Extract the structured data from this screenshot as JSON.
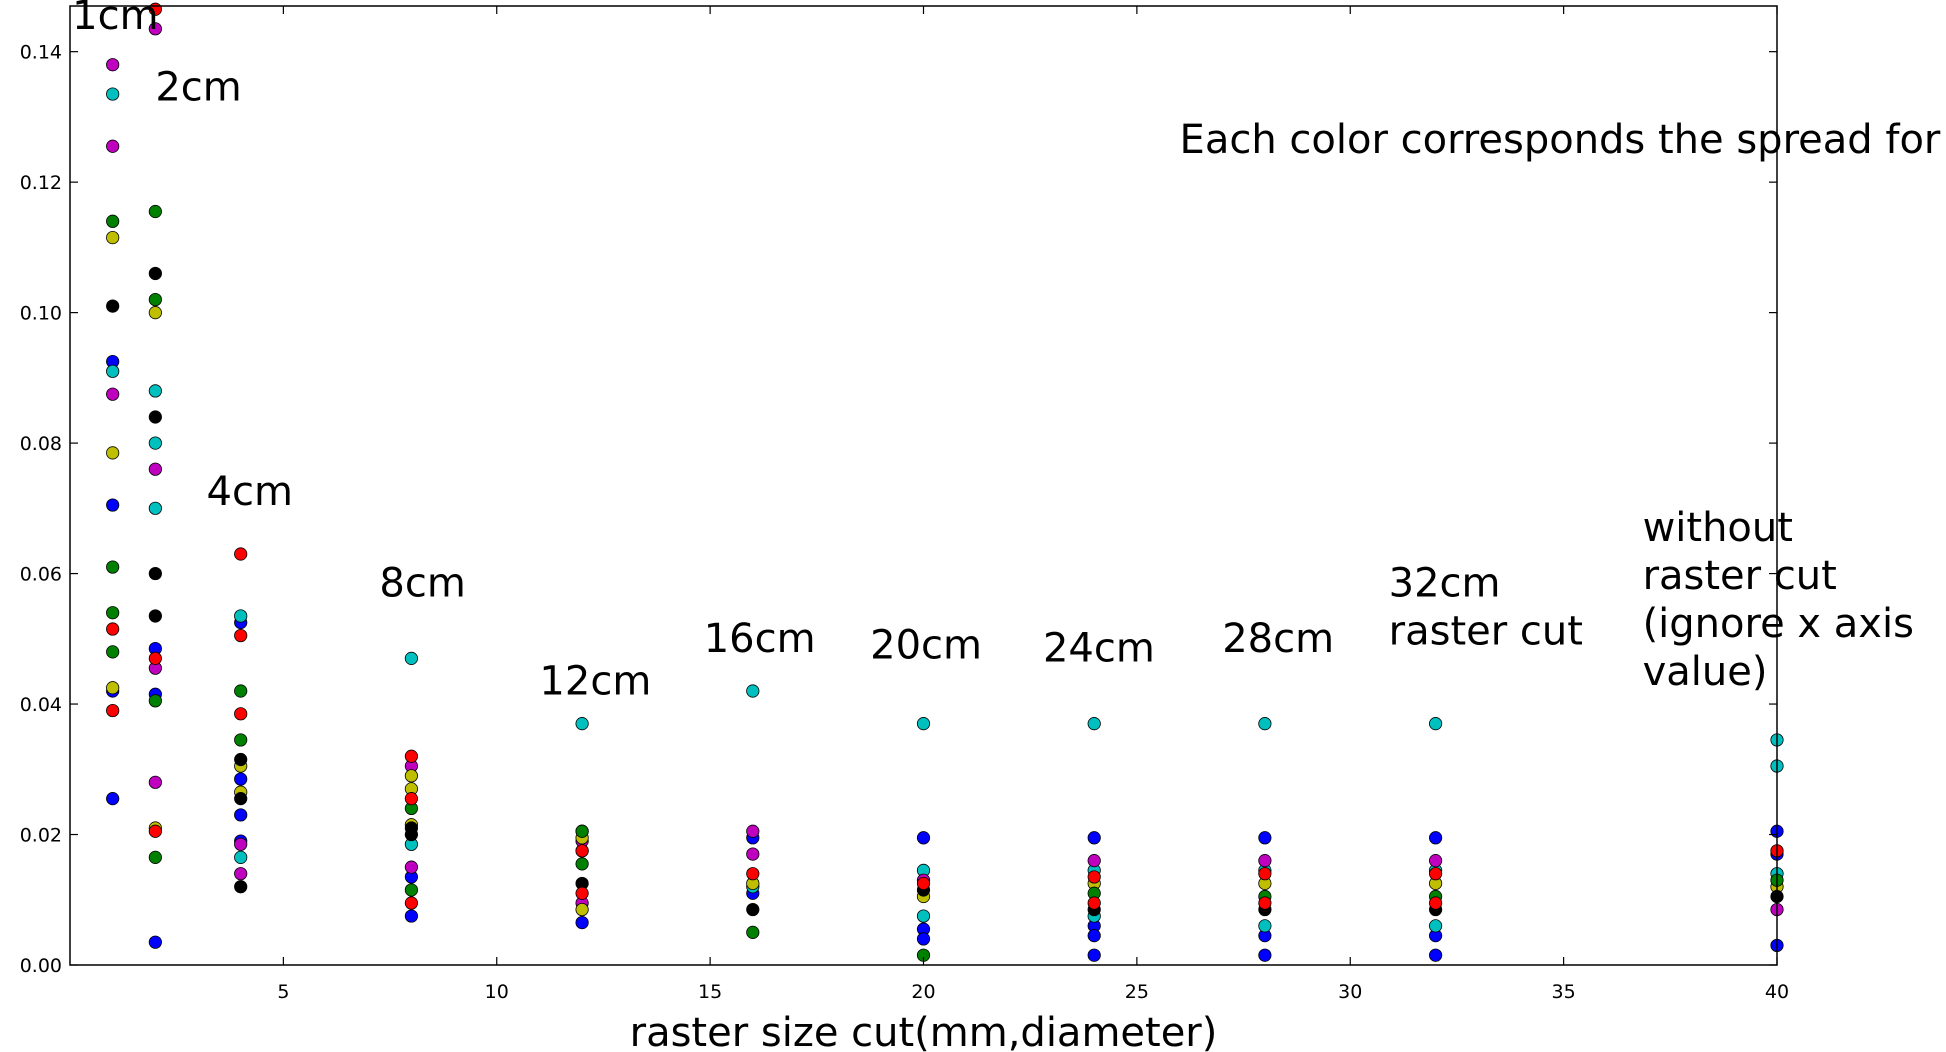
{
  "chart_data": {
    "type": "scatter",
    "title": "",
    "xlabel": "raster size cut(mm,diameter)",
    "ylabel": "",
    "xlim": [
      0,
      40
    ],
    "ylim": [
      0,
      0.147
    ],
    "xticks": [
      5,
      10,
      15,
      20,
      25,
      30,
      35,
      40
    ],
    "yticks": [
      0.0,
      0.02,
      0.04,
      0.06,
      0.08,
      0.1,
      0.12,
      0.14
    ],
    "xtick_labels": [
      "5",
      "10",
      "15",
      "20",
      "25",
      "30",
      "35",
      "40"
    ],
    "ytick_labels": [
      "0.00",
      "0.02",
      "0.04",
      "0.06",
      "0.08",
      "0.10",
      "0.12",
      "0.14"
    ],
    "grid": false,
    "annotations": [
      {
        "text": "Each color corresponds the spread for one setting",
        "x": 26.0,
        "y": 0.1245
      },
      {
        "text": "1cm",
        "x": 0.05,
        "y": 0.1435
      },
      {
        "text": "2cm",
        "x": 2.0,
        "y": 0.1325
      },
      {
        "text": "4cm",
        "x": 3.2,
        "y": 0.0705
      },
      {
        "text": "8cm",
        "x": 7.25,
        "y": 0.0565
      },
      {
        "text": "12cm",
        "x": 11.0,
        "y": 0.0415
      },
      {
        "text": "16cm",
        "x": 14.85,
        "y": 0.048
      },
      {
        "text": "20cm",
        "x": 18.75,
        "y": 0.047
      },
      {
        "text": "24cm",
        "x": 22.8,
        "y": 0.0465
      },
      {
        "text": "28cm",
        "x": 27.0,
        "y": 0.048
      },
      {
        "text": "32cm\nraster cut",
        "x": 30.9,
        "y": 0.0565
      },
      {
        "text": "without\nraster cut\n(ignore x axis\nvalue)",
        "x": 36.85,
        "y": 0.065
      }
    ],
    "series": [
      {
        "color": "#0000ff",
        "points": [
          [
            1,
            0.0925
          ],
          [
            1,
            0.0705
          ],
          [
            1,
            0.042
          ],
          [
            1,
            0.0255
          ],
          [
            2,
            0.0485
          ],
          [
            2,
            0.0415
          ],
          [
            2,
            0.0035
          ],
          [
            4,
            0.0525
          ],
          [
            4,
            0.0285
          ],
          [
            4,
            0.023
          ],
          [
            4,
            0.019
          ],
          [
            8,
            0.0135
          ],
          [
            8,
            0.0075
          ],
          [
            12,
            0.0205
          ],
          [
            12,
            0.0065
          ],
          [
            16,
            0.0195
          ],
          [
            16,
            0.011
          ],
          [
            20,
            0.0195
          ],
          [
            20,
            0.0055
          ],
          [
            20,
            0.004
          ],
          [
            24,
            0.0195
          ],
          [
            24,
            0.006
          ],
          [
            24,
            0.0045
          ],
          [
            24,
            0.0015
          ],
          [
            28,
            0.0195
          ],
          [
            28,
            0.0045
          ],
          [
            28,
            0.0015
          ],
          [
            32,
            0.0195
          ],
          [
            32,
            0.0045
          ],
          [
            32,
            0.0015
          ],
          [
            40,
            0.0205
          ],
          [
            40,
            0.017
          ],
          [
            40,
            0.003
          ]
        ]
      },
      {
        "color": "#00bfbf",
        "points": [
          [
            1,
            0.1335
          ],
          [
            1,
            0.091
          ],
          [
            2,
            0.088
          ],
          [
            2,
            0.08
          ],
          [
            2,
            0.07
          ],
          [
            4,
            0.0535
          ],
          [
            4,
            0.0165
          ],
          [
            8,
            0.047
          ],
          [
            8,
            0.0185
          ],
          [
            12,
            0.037
          ],
          [
            12,
            0.0175
          ],
          [
            16,
            0.042
          ],
          [
            16,
            0.012
          ],
          [
            20,
            0.037
          ],
          [
            20,
            0.0145
          ],
          [
            20,
            0.0075
          ],
          [
            24,
            0.037
          ],
          [
            24,
            0.0145
          ],
          [
            24,
            0.0075
          ],
          [
            28,
            0.037
          ],
          [
            28,
            0.0145
          ],
          [
            28,
            0.006
          ],
          [
            32,
            0.037
          ],
          [
            32,
            0.0145
          ],
          [
            32,
            0.006
          ],
          [
            40,
            0.0345
          ],
          [
            40,
            0.0305
          ],
          [
            40,
            0.014
          ]
        ]
      },
      {
        "color": "#bf00bf",
        "points": [
          [
            1,
            0.138
          ],
          [
            1,
            0.1255
          ],
          [
            1,
            0.0875
          ],
          [
            2,
            0.1435
          ],
          [
            2,
            0.076
          ],
          [
            2,
            0.0455
          ],
          [
            2,
            0.028
          ],
          [
            4,
            0.0185
          ],
          [
            4,
            0.014
          ],
          [
            8,
            0.0305
          ],
          [
            8,
            0.015
          ],
          [
            12,
            0.019
          ],
          [
            12,
            0.0095
          ],
          [
            16,
            0.0205
          ],
          [
            16,
            0.017
          ],
          [
            20,
            0.013
          ],
          [
            24,
            0.016
          ],
          [
            28,
            0.016
          ],
          [
            32,
            0.016
          ],
          [
            40,
            0.0085
          ]
        ]
      },
      {
        "color": "#bfbf00",
        "points": [
          [
            1,
            0.1115
          ],
          [
            1,
            0.0785
          ],
          [
            1,
            0.0425
          ],
          [
            2,
            0.1
          ],
          [
            2,
            0.021
          ],
          [
            4,
            0.0305
          ],
          [
            4,
            0.0265
          ],
          [
            8,
            0.029
          ],
          [
            8,
            0.027
          ],
          [
            8,
            0.0215
          ],
          [
            12,
            0.0195
          ],
          [
            12,
            0.0085
          ],
          [
            16,
            0.0125
          ],
          [
            20,
            0.0105
          ],
          [
            24,
            0.0125
          ],
          [
            28,
            0.0125
          ],
          [
            32,
            0.0125
          ],
          [
            40,
            0.012
          ]
        ]
      },
      {
        "color": "#008000",
        "points": [
          [
            1,
            0.114
          ],
          [
            1,
            0.061
          ],
          [
            1,
            0.054
          ],
          [
            1,
            0.048
          ],
          [
            2,
            0.1155
          ],
          [
            2,
            0.102
          ],
          [
            2,
            0.0405
          ],
          [
            2,
            0.0165
          ],
          [
            4,
            0.042
          ],
          [
            4,
            0.0345
          ],
          [
            8,
            0.024
          ],
          [
            8,
            0.0115
          ],
          [
            12,
            0.0205
          ],
          [
            12,
            0.0155
          ],
          [
            16,
            0.005
          ],
          [
            20,
            0.0015
          ],
          [
            24,
            0.011
          ],
          [
            28,
            0.0105
          ],
          [
            32,
            0.0105
          ],
          [
            40,
            0.013
          ]
        ]
      },
      {
        "color": "#000000",
        "points": [
          [
            1,
            0.101
          ],
          [
            2,
            0.106
          ],
          [
            2,
            0.084
          ],
          [
            2,
            0.06
          ],
          [
            2,
            0.0535
          ],
          [
            4,
            0.0315
          ],
          [
            4,
            0.0255
          ],
          [
            4,
            0.012
          ],
          [
            8,
            0.021
          ],
          [
            8,
            0.02
          ],
          [
            12,
            0.0125
          ],
          [
            16,
            0.0085
          ],
          [
            20,
            0.0115
          ],
          [
            24,
            0.0085
          ],
          [
            28,
            0.0085
          ],
          [
            32,
            0.0085
          ],
          [
            40,
            0.0105
          ]
        ]
      },
      {
        "color": "#ff0000",
        "points": [
          [
            1,
            0.0515
          ],
          [
            1,
            0.039
          ],
          [
            2,
            0.1465
          ],
          [
            2,
            0.047
          ],
          [
            2,
            0.0205
          ],
          [
            4,
            0.063
          ],
          [
            4,
            0.0505
          ],
          [
            4,
            0.0385
          ],
          [
            8,
            0.032
          ],
          [
            8,
            0.0255
          ],
          [
            8,
            0.0095
          ],
          [
            12,
            0.0175
          ],
          [
            12,
            0.011
          ],
          [
            16,
            0.014
          ],
          [
            20,
            0.0125
          ],
          [
            24,
            0.0135
          ],
          [
            24,
            0.0095
          ],
          [
            28,
            0.014
          ],
          [
            28,
            0.0095
          ],
          [
            32,
            0.014
          ],
          [
            32,
            0.0095
          ],
          [
            40,
            0.0175
          ]
        ]
      }
    ]
  }
}
